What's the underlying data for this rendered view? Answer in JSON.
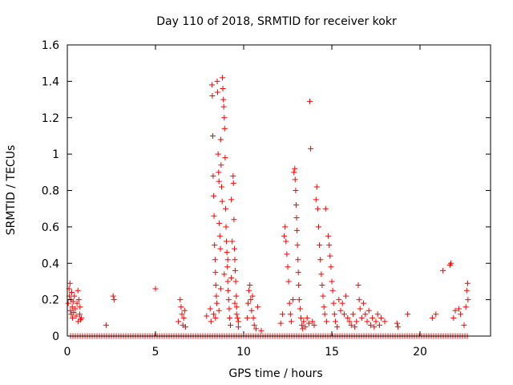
{
  "chart_data": {
    "type": "scatter",
    "title": "Day 110 of 2018, SRMTID for receiver kokr",
    "xlabel": "GPS time / hours",
    "ylabel": "SRMTID / TECUs",
    "xlim": [
      0,
      24
    ],
    "ylim": [
      0,
      1.6
    ],
    "x_ticks": [
      0,
      5,
      10,
      15,
      20
    ],
    "x_tick_labels": [
      "0",
      "5",
      "10",
      "15",
      "20"
    ],
    "y_ticks": [
      0,
      0.2,
      0.4,
      0.6,
      0.8,
      1.0,
      1.2,
      1.4,
      1.6
    ],
    "y_tick_labels": [
      "0",
      "0.2",
      "0.4",
      "0.6",
      "0.8",
      "1",
      "1.2",
      "1.4",
      "1.6"
    ],
    "grid": false,
    "marker": "plus",
    "colors": {
      "series": "#ff0000",
      "axes": "#000000",
      "background": "#ffffff"
    },
    "series": [
      {
        "name": "SRMTID",
        "points": [
          [
            0.05,
            0.18
          ],
          [
            0.1,
            0.26
          ],
          [
            0.12,
            0.22
          ],
          [
            0.15,
            0.29
          ],
          [
            0.18,
            0.14
          ],
          [
            0.2,
            0.2
          ],
          [
            0.22,
            0.12
          ],
          [
            0.25,
            0.24
          ],
          [
            0.28,
            0.16
          ],
          [
            0.3,
            0.1
          ],
          [
            0.33,
            0.19
          ],
          [
            0.36,
            0.13
          ],
          [
            0.4,
            0.22
          ],
          [
            0.45,
            0.15
          ],
          [
            0.5,
            0.11
          ],
          [
            0.55,
            0.18
          ],
          [
            0.6,
            0.25
          ],
          [
            0.62,
            0.08
          ],
          [
            0.65,
            0.2
          ],
          [
            0.7,
            0.12
          ],
          [
            0.72,
            0.16
          ],
          [
            0.75,
            0.09
          ],
          [
            0.8,
            0.1
          ],
          [
            2.2,
            0.06
          ],
          [
            2.6,
            0.22
          ],
          [
            2.65,
            0.2
          ],
          [
            5.0,
            0.26
          ],
          [
            6.3,
            0.08
          ],
          [
            6.4,
            0.2
          ],
          [
            6.45,
            0.16
          ],
          [
            6.5,
            0.12
          ],
          [
            6.55,
            0.06
          ],
          [
            6.6,
            0.1
          ],
          [
            6.65,
            0.14
          ],
          [
            6.7,
            0.05
          ],
          [
            7.9,
            0.11
          ],
          [
            8.1,
            0.15
          ],
          [
            8.15,
            0.08
          ],
          [
            8.2,
            1.38
          ],
          [
            8.22,
            1.32
          ],
          [
            8.25,
            1.1
          ],
          [
            8.27,
            0.88
          ],
          [
            8.3,
            0.77
          ],
          [
            8.32,
            0.66
          ],
          [
            8.35,
            0.5
          ],
          [
            8.38,
            0.42
          ],
          [
            8.4,
            0.35
          ],
          [
            8.42,
            0.28
          ],
          [
            8.45,
            0.22
          ],
          [
            8.48,
            0.18
          ],
          [
            8.5,
            1.4
          ],
          [
            8.52,
            1.34
          ],
          [
            8.55,
            1.0
          ],
          [
            8.58,
            0.9
          ],
          [
            8.6,
            0.85
          ],
          [
            8.62,
            0.62
          ],
          [
            8.65,
            0.55
          ],
          [
            8.68,
            0.48
          ],
          [
            8.7,
            1.08
          ],
          [
            8.72,
            0.94
          ],
          [
            8.75,
            0.82
          ],
          [
            8.78,
            0.74
          ],
          [
            8.8,
            1.42
          ],
          [
            8.82,
            1.36
          ],
          [
            8.85,
            1.3
          ],
          [
            8.87,
            1.26
          ],
          [
            8.9,
            1.2
          ],
          [
            8.92,
            1.14
          ],
          [
            8.95,
            0.98
          ],
          [
            8.98,
            0.7
          ],
          [
            9.0,
            0.6
          ],
          [
            9.02,
            0.52
          ],
          [
            9.05,
            0.46
          ],
          [
            9.08,
            0.38
          ],
          [
            9.1,
            0.3
          ],
          [
            9.12,
            0.25
          ],
          [
            9.15,
            0.2
          ],
          [
            9.18,
            0.15
          ],
          [
            9.2,
            0.1
          ],
          [
            9.25,
            0.06
          ],
          [
            9.3,
            0.75
          ],
          [
            9.35,
            0.52
          ],
          [
            9.4,
            0.88
          ],
          [
            9.42,
            0.84
          ],
          [
            9.45,
            0.64
          ],
          [
            9.48,
            0.48
          ],
          [
            9.5,
            0.42
          ],
          [
            9.52,
            0.36
          ],
          [
            9.55,
            0.3
          ],
          [
            9.58,
            0.22
          ],
          [
            9.6,
            0.16
          ],
          [
            9.65,
            0.1
          ],
          [
            9.7,
            0.05
          ],
          [
            8.3,
            0.12
          ],
          [
            8.4,
            0.1
          ],
          [
            8.6,
            0.14
          ],
          [
            8.7,
            0.26
          ],
          [
            8.9,
            0.34
          ],
          [
            9.1,
            0.42
          ],
          [
            9.3,
            0.32
          ],
          [
            9.5,
            0.18
          ],
          [
            9.6,
            0.12
          ],
          [
            9.7,
            0.08
          ],
          [
            10.2,
            0.1
          ],
          [
            10.25,
            0.18
          ],
          [
            10.3,
            0.25
          ],
          [
            10.35,
            0.28
          ],
          [
            10.4,
            0.2
          ],
          [
            10.45,
            0.14
          ],
          [
            10.5,
            0.22
          ],
          [
            10.55,
            0.1
          ],
          [
            10.6,
            0.06
          ],
          [
            10.7,
            0.04
          ],
          [
            10.8,
            0.16
          ],
          [
            11.0,
            0.03
          ],
          [
            12.1,
            0.07
          ],
          [
            12.2,
            0.12
          ],
          [
            12.3,
            0.55
          ],
          [
            12.35,
            0.6
          ],
          [
            12.4,
            0.52
          ],
          [
            12.45,
            0.45
          ],
          [
            12.5,
            0.38
          ],
          [
            12.55,
            0.3
          ],
          [
            12.6,
            0.18
          ],
          [
            12.65,
            0.12
          ],
          [
            12.7,
            0.08
          ],
          [
            12.8,
            0.2
          ],
          [
            12.85,
            0.9
          ],
          [
            12.9,
            0.92
          ],
          [
            12.92,
            0.86
          ],
          [
            12.95,
            0.8
          ],
          [
            12.98,
            0.72
          ],
          [
            13.0,
            0.65
          ],
          [
            13.02,
            0.58
          ],
          [
            13.05,
            0.5
          ],
          [
            13.08,
            0.42
          ],
          [
            13.1,
            0.35
          ],
          [
            13.12,
            0.28
          ],
          [
            13.15,
            0.2
          ],
          [
            13.2,
            0.15
          ],
          [
            13.25,
            0.1
          ],
          [
            13.3,
            0.06
          ],
          [
            13.35,
            0.04
          ],
          [
            13.4,
            0.08
          ],
          [
            13.5,
            0.05
          ],
          [
            13.6,
            0.1
          ],
          [
            13.7,
            0.07
          ],
          [
            13.75,
            1.29
          ],
          [
            13.8,
            1.03
          ],
          [
            13.9,
            0.08
          ],
          [
            14.0,
            0.06
          ],
          [
            14.1,
            0.75
          ],
          [
            14.15,
            0.82
          ],
          [
            14.2,
            0.7
          ],
          [
            14.25,
            0.6
          ],
          [
            14.3,
            0.5
          ],
          [
            14.35,
            0.42
          ],
          [
            14.4,
            0.34
          ],
          [
            14.45,
            0.28
          ],
          [
            14.5,
            0.22
          ],
          [
            14.55,
            0.16
          ],
          [
            14.6,
            0.12
          ],
          [
            14.65,
            0.7
          ],
          [
            14.7,
            0.08
          ],
          [
            14.8,
            0.55
          ],
          [
            14.85,
            0.5
          ],
          [
            14.9,
            0.44
          ],
          [
            14.95,
            0.38
          ],
          [
            15.0,
            0.3
          ],
          [
            15.05,
            0.25
          ],
          [
            15.1,
            0.18
          ],
          [
            15.15,
            0.12
          ],
          [
            15.2,
            0.08
          ],
          [
            15.3,
            0.05
          ],
          [
            15.4,
            0.2
          ],
          [
            15.5,
            0.14
          ],
          [
            15.6,
            0.18
          ],
          [
            15.7,
            0.12
          ],
          [
            15.8,
            0.22
          ],
          [
            15.9,
            0.1
          ],
          [
            16.0,
            0.08
          ],
          [
            16.1,
            0.06
          ],
          [
            16.2,
            0.12
          ],
          [
            16.3,
            0.05
          ],
          [
            16.4,
            0.08
          ],
          [
            16.5,
            0.28
          ],
          [
            16.55,
            0.2
          ],
          [
            16.6,
            0.15
          ],
          [
            16.7,
            0.1
          ],
          [
            16.8,
            0.18
          ],
          [
            16.9,
            0.12
          ],
          [
            17.0,
            0.08
          ],
          [
            17.1,
            0.14
          ],
          [
            17.2,
            0.06
          ],
          [
            17.3,
            0.1
          ],
          [
            17.4,
            0.05
          ],
          [
            17.5,
            0.08
          ],
          [
            17.6,
            0.12
          ],
          [
            17.7,
            0.06
          ],
          [
            17.8,
            0.1
          ],
          [
            18.0,
            0.08
          ],
          [
            18.7,
            0.07
          ],
          [
            18.75,
            0.05
          ],
          [
            19.3,
            0.12
          ],
          [
            20.7,
            0.1
          ],
          [
            20.9,
            0.12
          ],
          [
            21.3,
            0.36
          ],
          [
            21.7,
            0.39
          ],
          [
            21.75,
            0.4
          ],
          [
            21.9,
            0.1
          ],
          [
            22.0,
            0.14
          ],
          [
            22.2,
            0.15
          ],
          [
            22.3,
            0.12
          ],
          [
            22.5,
            0.06
          ],
          [
            22.6,
            0.16
          ],
          [
            22.65,
            0.25
          ],
          [
            22.7,
            0.29
          ],
          [
            22.72,
            0.2
          ]
        ]
      }
    ]
  }
}
